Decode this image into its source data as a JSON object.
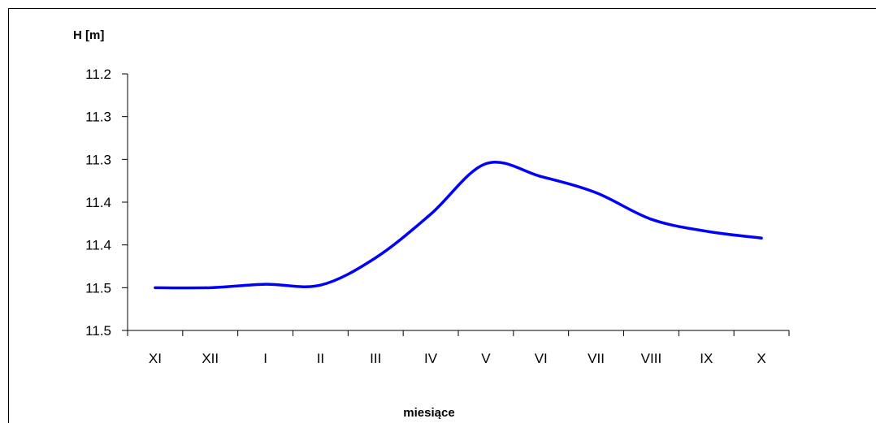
{
  "chart_data": {
    "type": "line",
    "title": "",
    "xlabel": "miesiące",
    "ylabel": "H [m]",
    "categories": [
      "XI",
      "XII",
      "I",
      "II",
      "III",
      "IV",
      "V",
      "VI",
      "VII",
      "VIII",
      "IX",
      "X"
    ],
    "y_tick_labels": [
      "11.2",
      "11.3",
      "11.3",
      "11.4",
      "11.4",
      "11.5",
      "11.5"
    ],
    "ylim": [
      11.15,
      11.45
    ],
    "y_inverted": true,
    "grid": false,
    "legend": "none",
    "series": [
      {
        "color": "#0000ff",
        "values": [
          11.4,
          11.4,
          11.396,
          11.397,
          11.365,
          11.314,
          11.255,
          11.27,
          11.289,
          11.32,
          11.334,
          11.342
        ]
      }
    ]
  }
}
